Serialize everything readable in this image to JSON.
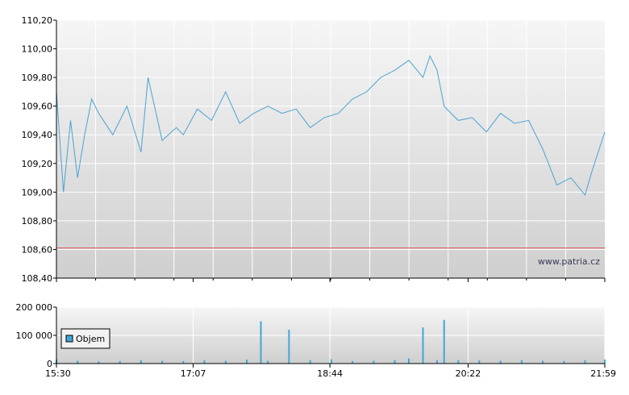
{
  "watermark": "www.patria.cz",
  "colors": {
    "price_line": "#4aa3d2",
    "volume_bar": "#3fa7d8",
    "reference_line": "#e05050",
    "plot_bg_top": "#f6f6f6",
    "plot_bg_bottom": "#cfcfcf",
    "grid": "#ffffff",
    "axis": "#000000"
  },
  "chart_data": [
    {
      "type": "line",
      "title": "",
      "xlabel": "",
      "ylabel": "",
      "x_ticks": [
        "15:30",
        "17:07",
        "18:44",
        "20:22",
        "21:59"
      ],
      "x_range": [
        "15:30",
        "21:59"
      ],
      "ylim": [
        108.4,
        110.2
      ],
      "y_ticks": [
        "110,20",
        "110,00",
        "109,80",
        "109,60",
        "109,40",
        "109,20",
        "109,00",
        "108,80",
        "108,60",
        "108,40"
      ],
      "reference_line": 108.61,
      "grid": true,
      "series": [
        {
          "x": [
            "15:30",
            "15:35",
            "15:40",
            "15:45",
            "15:50",
            "15:55",
            "16:00",
            "16:10",
            "16:20",
            "16:30",
            "16:35",
            "16:45",
            "16:55",
            "17:00",
            "17:10",
            "17:20",
            "17:30",
            "17:40",
            "17:50",
            "18:00",
            "18:10",
            "18:20",
            "18:30",
            "18:40",
            "18:50",
            "19:00",
            "19:10",
            "19:20",
            "19:30",
            "19:40",
            "19:50",
            "19:55",
            "20:00",
            "20:05",
            "20:15",
            "20:25",
            "20:35",
            "20:45",
            "20:55",
            "21:05",
            "21:15",
            "21:25",
            "21:35",
            "21:45",
            "21:50",
            "21:55",
            "21:59"
          ],
          "y": [
            109.7,
            109.0,
            109.5,
            109.1,
            109.4,
            109.65,
            109.55,
            109.4,
            109.6,
            109.28,
            109.8,
            109.36,
            109.45,
            109.4,
            109.58,
            109.5,
            109.7,
            109.48,
            109.55,
            109.6,
            109.55,
            109.58,
            109.45,
            109.52,
            109.55,
            109.65,
            109.7,
            109.8,
            109.85,
            109.92,
            109.8,
            109.95,
            109.85,
            109.6,
            109.5,
            109.52,
            109.42,
            109.55,
            109.48,
            109.5,
            109.3,
            109.05,
            109.1,
            108.98,
            109.15,
            109.3,
            109.42
          ]
        }
      ]
    },
    {
      "type": "bar",
      "title": "",
      "ylim": [
        0,
        200000
      ],
      "y_ticks": [
        "200 000",
        "100 000",
        "0"
      ],
      "legend": [
        {
          "name": "Objem",
          "position": "left"
        }
      ],
      "series": [
        {
          "name": "Objem",
          "x": [
            "15:30",
            "15:45",
            "16:00",
            "16:15",
            "16:30",
            "16:45",
            "17:00",
            "17:15",
            "17:30",
            "17:45",
            "17:55",
            "18:00",
            "18:15",
            "18:30",
            "18:45",
            "19:00",
            "19:15",
            "19:30",
            "19:40",
            "19:50",
            "20:00",
            "20:05",
            "20:15",
            "20:30",
            "20:45",
            "21:00",
            "21:15",
            "21:30",
            "21:45",
            "21:59"
          ],
          "values": [
            15000,
            10000,
            8000,
            9000,
            12000,
            10000,
            9000,
            11000,
            10000,
            14000,
            150000,
            10000,
            120000,
            12000,
            15000,
            9000,
            10000,
            12000,
            18000,
            128000,
            12000,
            155000,
            12000,
            11000,
            10000,
            12000,
            10000,
            9000,
            12000,
            14000
          ]
        }
      ]
    }
  ]
}
